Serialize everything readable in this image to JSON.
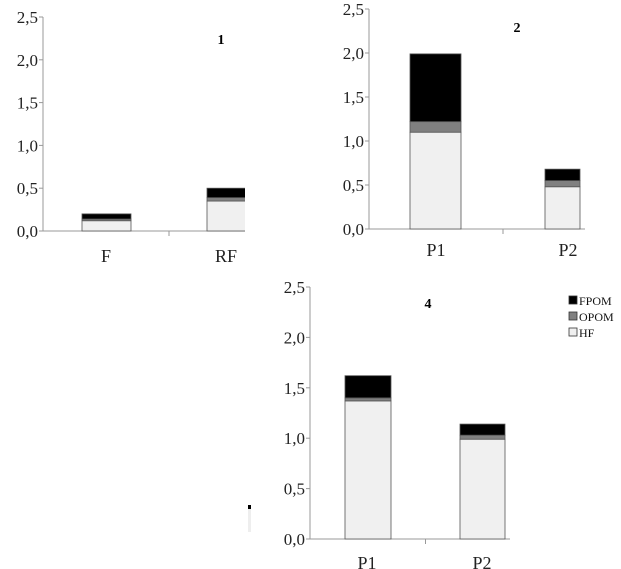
{
  "chart_data": [
    {
      "type": "bar",
      "stacked": true,
      "title": "1",
      "categories": [
        "F",
        "RF"
      ],
      "ylim": [
        0,
        2.5
      ],
      "yticks": [
        "0,0",
        "0,5",
        "1,0",
        "1,5",
        "2,0",
        "2,5"
      ],
      "series": [
        {
          "name": "HF",
          "values": [
            0.12,
            0.35
          ]
        },
        {
          "name": "OPOM",
          "values": [
            0.02,
            0.04
          ]
        },
        {
          "name": "FPOM",
          "values": [
            0.06,
            0.11
          ]
        }
      ]
    },
    {
      "type": "bar",
      "stacked": true,
      "title": "2",
      "categories": [
        "P1",
        "P2"
      ],
      "ylim": [
        0,
        2.5
      ],
      "yticks": [
        "0,0",
        "0,5",
        "1,0",
        "1,5",
        "2,0",
        "2,5"
      ],
      "series": [
        {
          "name": "HF",
          "values": [
            1.1,
            0.48
          ]
        },
        {
          "name": "OPOM",
          "values": [
            0.12,
            0.07
          ]
        },
        {
          "name": "FPOM",
          "values": [
            0.77,
            0.13
          ]
        }
      ]
    },
    {
      "type": "bar",
      "stacked": true,
      "title": "4",
      "categories": [
        "P1",
        "P2"
      ],
      "ylim": [
        0,
        2.5
      ],
      "yticks": [
        "0,0",
        "0,5",
        "1,0",
        "1,5",
        "2,0",
        "2,5"
      ],
      "legend": [
        "FPOM",
        "OPOM",
        "HF"
      ],
      "legend_position": "top-right",
      "series": [
        {
          "name": "HF",
          "values": [
            1.37,
            0.99
          ]
        },
        {
          "name": "OPOM",
          "values": [
            0.03,
            0.04
          ]
        },
        {
          "name": "FPOM",
          "values": [
            0.22,
            0.11
          ]
        }
      ]
    }
  ],
  "colors": {
    "HF": "#f0f0f0",
    "OPOM": "#808080",
    "FPOM": "#000000"
  }
}
